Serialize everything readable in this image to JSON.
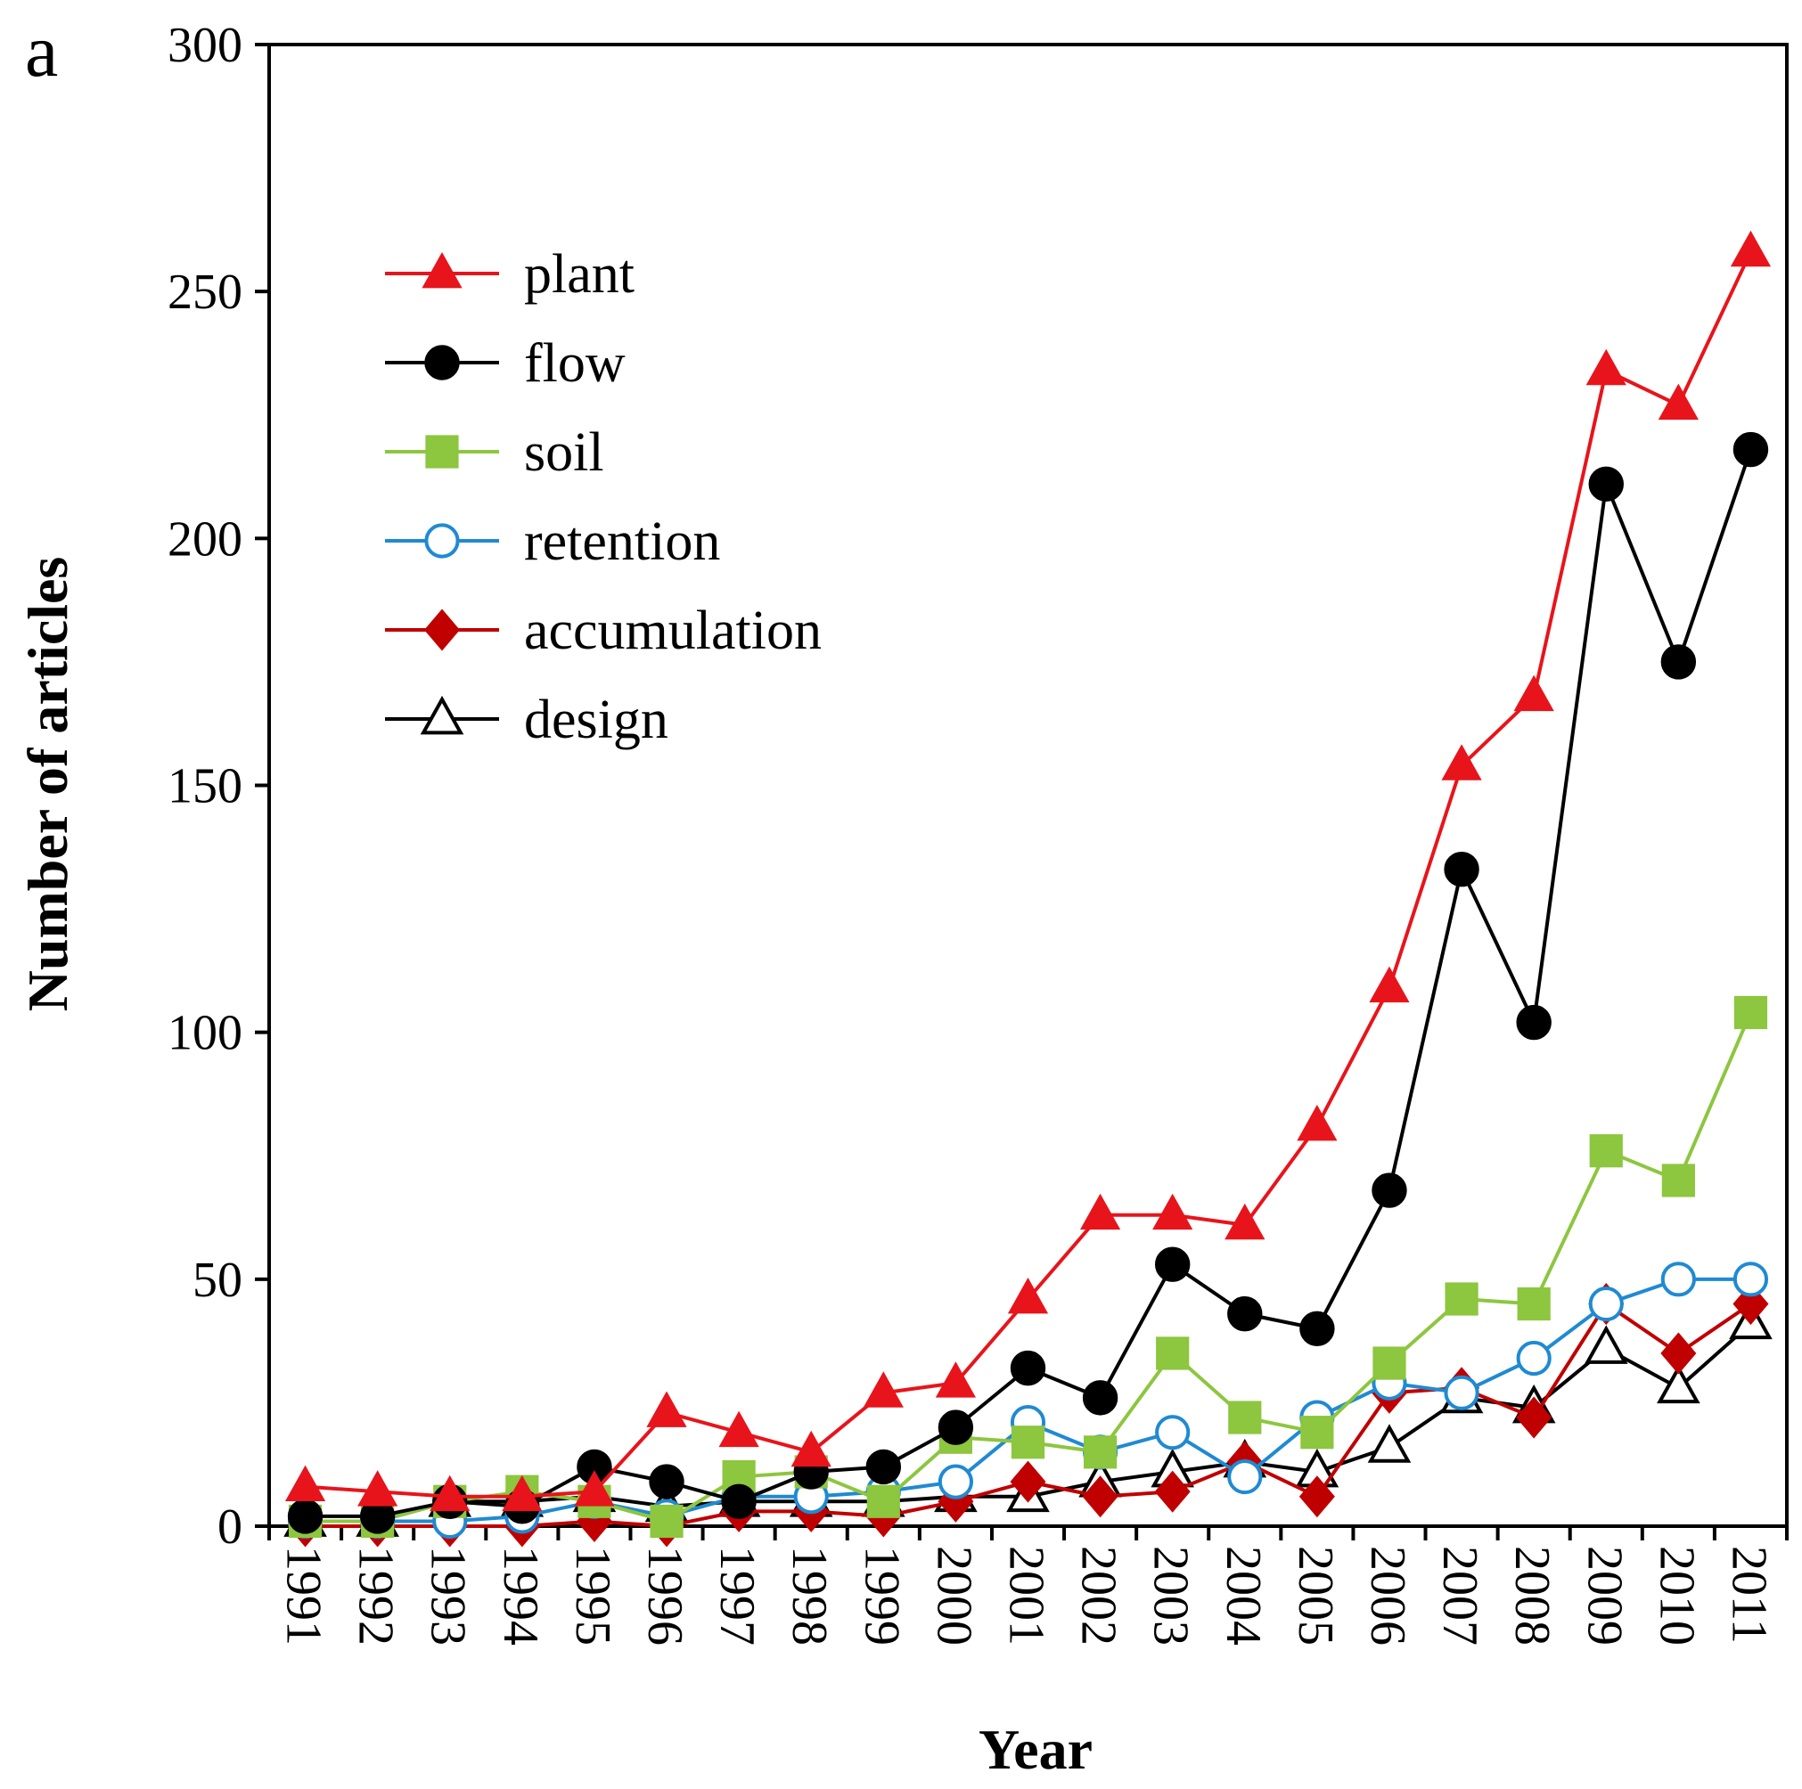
{
  "panel_label": "a",
  "chart_data": {
    "type": "line",
    "xlabel": "Year",
    "ylabel": "Number of articles",
    "ylim": [
      0,
      300
    ],
    "yticks": [
      0,
      50,
      100,
      150,
      200,
      250,
      300
    ],
    "categories": [
      "1991",
      "1992",
      "1993",
      "1994",
      "1995",
      "1996",
      "1997",
      "1998",
      "1999",
      "2000",
      "2001",
      "2002",
      "2003",
      "2004",
      "2005",
      "2006",
      "2007",
      "2008",
      "2009",
      "2010",
      "2011"
    ],
    "grid": false,
    "legend_position": "top-left",
    "series": [
      {
        "name": "plant",
        "color": "#e8141b",
        "marker": "triangle-filled",
        "values": [
          8,
          7,
          6,
          6,
          7,
          23,
          19,
          15,
          27,
          29,
          46,
          63,
          63,
          61,
          81,
          109,
          154,
          168,
          234,
          227,
          258
        ]
      },
      {
        "name": "flow",
        "color": "#000000",
        "marker": "circle-filled",
        "values": [
          2,
          2,
          5,
          4,
          12,
          9,
          5,
          11,
          12,
          20,
          32,
          26,
          53,
          43,
          40,
          68,
          133,
          102,
          211,
          175,
          218
        ]
      },
      {
        "name": "soil",
        "color": "#8dc63f",
        "marker": "square-filled",
        "values": [
          1,
          1,
          5,
          7,
          5,
          1,
          10,
          11,
          5,
          18,
          17,
          15,
          35,
          22,
          19,
          33,
          46,
          45,
          76,
          70,
          104
        ]
      },
      {
        "name": "retention",
        "color": "#1f8ad2",
        "marker": "circle-open",
        "values": [
          1,
          1,
          1,
          2,
          5,
          2,
          6,
          6,
          7,
          9,
          21,
          15,
          19,
          10,
          22,
          29,
          27,
          34,
          45,
          50,
          50
        ]
      },
      {
        "name": "accumulation",
        "color": "#c00000",
        "marker": "diamond-filled",
        "values": [
          0,
          0,
          0,
          0,
          1,
          0,
          3,
          3,
          2,
          5,
          9,
          6,
          7,
          13,
          6,
          27,
          28,
          22,
          45,
          35,
          45
        ]
      },
      {
        "name": "design",
        "color": "#000000",
        "marker": "triangle-open",
        "values": [
          1,
          1,
          5,
          5,
          6,
          4,
          5,
          5,
          5,
          6,
          6,
          9,
          11,
          13,
          11,
          16,
          26,
          24,
          36,
          28,
          41
        ]
      }
    ]
  }
}
